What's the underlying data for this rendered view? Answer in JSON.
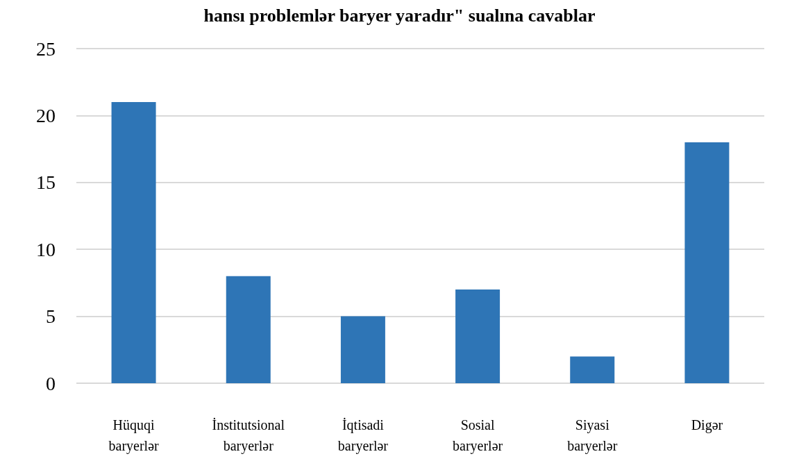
{
  "chart_data": {
    "type": "bar",
    "title": "hansı problemlər baryer yaradır\" sualına cavablar",
    "categories": [
      "Hüquqi baryerlər",
      "İnstitutsional baryerlər",
      "İqtisadi baryerlər",
      "Sosial baryerlər",
      "Siyasi baryerlər",
      "Digər"
    ],
    "values": [
      21,
      8,
      5,
      7,
      2,
      18
    ],
    "color": "#2e75b6",
    "ylim": [
      0,
      25
    ],
    "yticks": [
      0,
      5,
      10,
      15,
      20,
      25
    ],
    "grid": "y"
  }
}
